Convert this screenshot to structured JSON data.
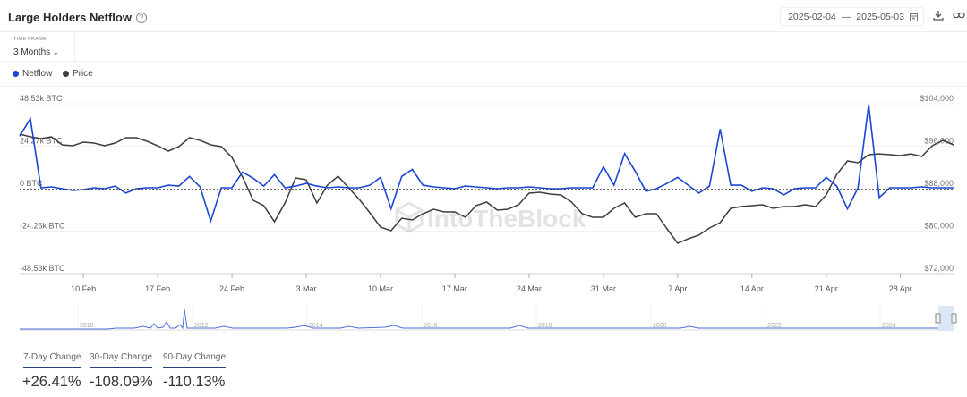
{
  "header": {
    "title": "Large Holders Netflow",
    "help_icon": "question-circle-icon",
    "date_from": "2025-02-04",
    "date_sep": "—",
    "date_to": "2025-05-03",
    "calendar_icon": "calendar-icon",
    "download_icon": "download-icon",
    "link_icon": "link-icon"
  },
  "timeframe": {
    "label": "TIME FRAME",
    "value": "3 Months"
  },
  "legend": [
    {
      "label": "Netflow",
      "color": "#1b46d4"
    },
    {
      "label": "Price",
      "color": "#3d3d3d"
    }
  ],
  "watermark": "IntoTheBlock",
  "chart_data": {
    "type": "line",
    "title": "Large Holders Netflow",
    "start_date": "2025-02-04",
    "end_date": "2025-05-03",
    "x_step": "1 day",
    "x_ticks": [
      {
        "label": "10 Feb",
        "day": 6
      },
      {
        "label": "17 Feb",
        "day": 13
      },
      {
        "label": "24 Feb",
        "day": 20
      },
      {
        "label": "3 Mar",
        "day": 27
      },
      {
        "label": "10 Mar",
        "day": 34
      },
      {
        "label": "17 Mar",
        "day": 41
      },
      {
        "label": "24 Mar",
        "day": 48
      },
      {
        "label": "31 Mar",
        "day": 55
      },
      {
        "label": "7 Apr",
        "day": 62
      },
      {
        "label": "14 Apr",
        "day": 69
      },
      {
        "label": "21 Apr",
        "day": 76
      },
      {
        "label": "28 Apr",
        "day": 83
      }
    ],
    "y_left": {
      "unit": "k BTC",
      "range": [
        -48.53,
        48.53
      ],
      "ticks": [
        "48.53k BTC",
        "24.27k BTC",
        "0 BTC",
        "-24.26k BTC",
        "-48.53k BTC"
      ]
    },
    "y_right": {
      "unit": "USD",
      "range": [
        72000,
        104000
      ],
      "ticks": [
        "$104,000",
        "$96,000",
        "$88,000",
        "$80,000",
        "$72,000"
      ]
    },
    "grid": true,
    "legend_position": "top-left",
    "series": [
      {
        "name": "Netflow",
        "axis": "left",
        "color": "#1b46d4",
        "values": [
          30,
          40,
          0.5,
          1,
          0,
          -1,
          -0.5,
          0.5,
          0,
          1.5,
          -2.5,
          0,
          0.5,
          0.5,
          2,
          1.5,
          7,
          1,
          -18.5,
          0.5,
          0.5,
          9.5,
          6,
          1.5,
          8,
          0.5,
          1.5,
          3,
          1.5,
          0.5,
          1,
          0.5,
          0.5,
          2,
          6.5,
          -11.5,
          7,
          11,
          2,
          1,
          0.5,
          0,
          1.5,
          1,
          0.5,
          0,
          0.5,
          0.5,
          1,
          0.5,
          0,
          0,
          0.5,
          0.5,
          0.5,
          12.5,
          2,
          20,
          10,
          -1.5,
          0,
          3,
          6.5,
          2,
          -2.5,
          1.5,
          34,
          2,
          2,
          -1.5,
          0.5,
          0,
          -3.5,
          0,
          0.5,
          0.5,
          6.5,
          1.5,
          -11.5,
          0.5,
          48,
          -5,
          0.5,
          0.5,
          0.5,
          1,
          0.5,
          0.5,
          0.5
        ]
      },
      {
        "name": "Price",
        "axis": "right",
        "color": "#3d3d3d",
        "values": [
          98270,
          97770,
          97430,
          97770,
          96250,
          96080,
          96750,
          96590,
          96080,
          96590,
          97600,
          97600,
          96920,
          96080,
          95070,
          95910,
          97600,
          97090,
          96250,
          95910,
          93890,
          90190,
          85810,
          84800,
          81770,
          85300,
          90020,
          89680,
          85300,
          88670,
          90360,
          88170,
          85980,
          83450,
          80760,
          80080,
          82440,
          82100,
          83280,
          84120,
          83620,
          83620,
          82610,
          84800,
          85470,
          83960,
          84120,
          84970,
          87160,
          87320,
          86990,
          86820,
          85470,
          83280,
          82610,
          82610,
          84290,
          85300,
          82610,
          83280,
          83280,
          80420,
          77730,
          78570,
          79240,
          80590,
          81600,
          84290,
          84630,
          84800,
          84970,
          84290,
          84630,
          84630,
          84970,
          84630,
          86820,
          90690,
          93220,
          92880,
          94400,
          94560,
          94400,
          94230,
          94560,
          94060,
          96080,
          97090,
          96250
        ]
      }
    ]
  },
  "navigator": {
    "years": [
      "2010",
      "2012",
      "2014",
      "2016",
      "2018",
      "2020",
      "2022",
      "2024"
    ]
  },
  "stats": [
    {
      "label": "7-Day Change",
      "value": "+26.41%"
    },
    {
      "label": "30-Day Change",
      "value": "-108.09%"
    },
    {
      "label": "90-Day Change",
      "value": "-110.13%"
    }
  ]
}
